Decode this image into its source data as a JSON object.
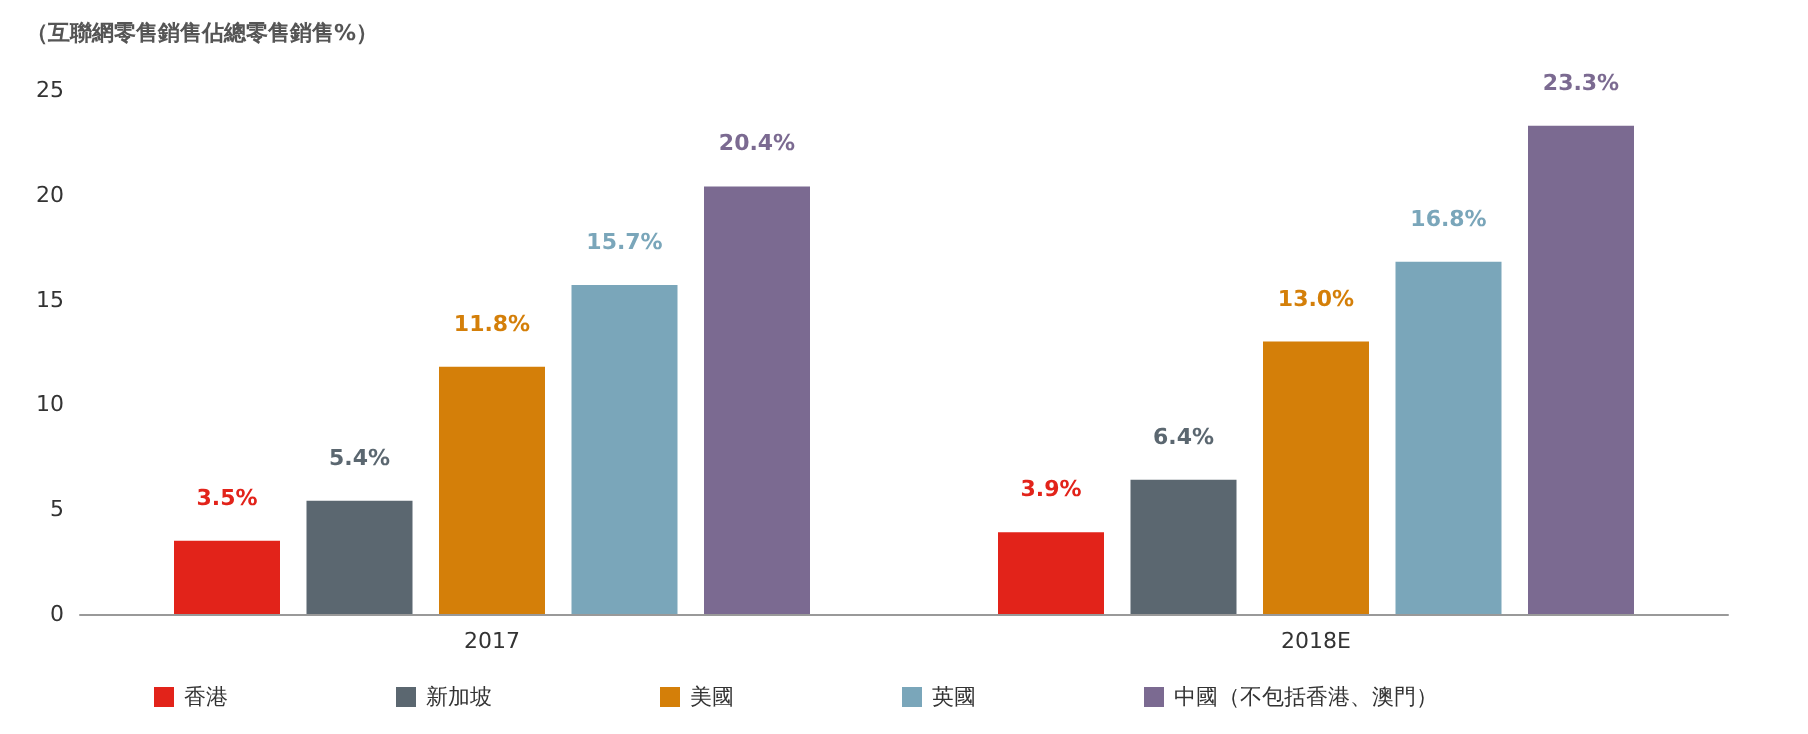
{
  "chart_data": {
    "type": "bar",
    "ylabel": "（互聯網零售銷售佔總零售銷售%）",
    "categories": [
      "2017",
      "2018E"
    ],
    "series": [
      {
        "name": "香港",
        "color": "#e2231a",
        "values": [
          3.5,
          3.9
        ],
        "value_labels": [
          "3.5%",
          "3.9%"
        ]
      },
      {
        "name": "新加坡",
        "color": "#5b6770",
        "values": [
          5.4,
          6.4
        ],
        "value_labels": [
          "5.4%",
          "6.4%"
        ]
      },
      {
        "name": "美國",
        "color": "#d47f09",
        "values": [
          11.8,
          13.0
        ],
        "value_labels": [
          "11.8%",
          "13.0%"
        ]
      },
      {
        "name": "英國",
        "color": "#7aa6ba",
        "values": [
          15.7,
          16.8
        ],
        "value_labels": [
          "15.7%",
          "16.8%"
        ]
      },
      {
        "name": "中國（不包括香港、澳門）",
        "color": "#7b6a91",
        "values": [
          20.4,
          23.3
        ],
        "value_labels": [
          "20.4%",
          "23.3%"
        ]
      }
    ],
    "ylim": [
      0,
      25
    ],
    "yticks": [
      0,
      5,
      10,
      15,
      20,
      25
    ],
    "grid": false,
    "legend": "bottom left"
  }
}
